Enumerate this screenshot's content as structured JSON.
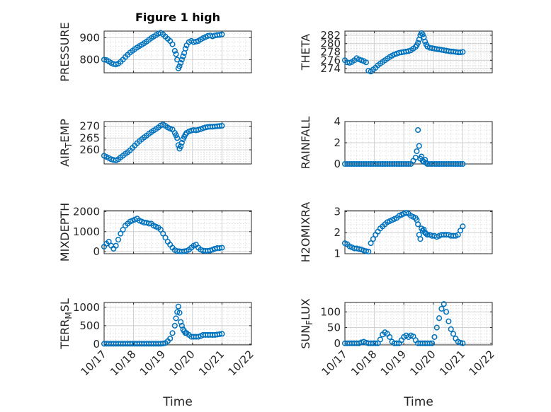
{
  "figure_title": "Figure 1 high",
  "colors": {
    "marker": "#0072bd",
    "axes": "#262626",
    "grid": "#d0d0d0",
    "background": "#ffffff"
  },
  "chart_data": [
    {
      "type": "scatter",
      "ylabel": "PRESSURE",
      "ylim": [
        740,
        930
      ],
      "yticks": [
        800,
        900
      ],
      "ytick_labels": [
        "800",
        "900"
      ],
      "xlim": [
        0,
        5
      ],
      "xtick_labels": [
        "10/17",
        "10/18",
        "10/19",
        "10/20",
        "10/21",
        "10/22"
      ],
      "xlabel": "",
      "title": "Figure 1 high",
      "x": [
        0,
        0.08,
        0.16,
        0.24,
        0.32,
        0.4,
        0.48,
        0.56,
        0.64,
        0.72,
        0.8,
        0.88,
        0.96,
        1.04,
        1.12,
        1.2,
        1.28,
        1.36,
        1.44,
        1.52,
        1.6,
        1.68,
        1.76,
        1.84,
        1.92,
        2.0,
        2.08,
        2.16,
        2.24,
        2.32,
        2.4,
        2.44,
        2.48,
        2.52,
        2.56,
        2.6,
        2.64,
        2.68,
        2.72,
        2.76,
        2.8,
        2.88,
        2.96,
        3.04,
        3.12,
        3.2,
        3.28,
        3.36,
        3.44,
        3.52,
        3.6,
        3.68,
        3.76,
        3.84,
        3.92,
        4.0
      ],
      "y": [
        800,
        798,
        792,
        785,
        780,
        778,
        782,
        790,
        800,
        812,
        822,
        832,
        840,
        848,
        855,
        862,
        868,
        875,
        882,
        890,
        898,
        905,
        912,
        918,
        922,
        915,
        905,
        895,
        885,
        870,
        840,
        825,
        800,
        760,
        770,
        785,
        800,
        815,
        830,
        850,
        865,
        880,
        885,
        880,
        882,
        885,
        892,
        898,
        903,
        908,
        910,
        906,
        910,
        912,
        913,
        915
      ]
    },
    {
      "type": "scatter",
      "ylabel": "THETA",
      "ylim": [
        273,
        283
      ],
      "yticks": [
        274,
        276,
        278,
        280,
        282
      ],
      "ytick_labels": [
        "274",
        "276",
        "278",
        "280",
        "282"
      ],
      "xlim": [
        0,
        5
      ],
      "xtick_labels": [
        "10/17",
        "10/18",
        "10/19",
        "10/20",
        "10/21",
        "10/22"
      ],
      "xlabel": "",
      "x": [
        0,
        0.08,
        0.16,
        0.24,
        0.32,
        0.4,
        0.48,
        0.56,
        0.64,
        0.72,
        0.8,
        0.88,
        0.96,
        1.04,
        1.12,
        1.2,
        1.28,
        1.36,
        1.44,
        1.52,
        1.6,
        1.68,
        1.76,
        1.84,
        1.92,
        2.0,
        2.08,
        2.16,
        2.24,
        2.32,
        2.4,
        2.44,
        2.48,
        2.52,
        2.56,
        2.6,
        2.64,
        2.68,
        2.72,
        2.76,
        2.8,
        2.88,
        2.96,
        3.04,
        3.12,
        3.2,
        3.28,
        3.36,
        3.44,
        3.52,
        3.6,
        3.68,
        3.76,
        3.84,
        3.92,
        4.0
      ],
      "y": [
        276,
        275.5,
        275.4,
        275.6,
        276,
        276.5,
        276.2,
        276,
        275.8,
        275.5,
        273.5,
        273.3,
        273.8,
        274.2,
        274.8,
        275.2,
        275.6,
        276,
        276.4,
        276.8,
        277.1,
        277.4,
        277.6,
        277.8,
        277.9,
        278,
        278.1,
        278.2,
        278.4,
        278.8,
        279.2,
        279.6,
        280.2,
        281,
        282,
        282.5,
        282.2,
        281.5,
        280.5,
        279.8,
        279.3,
        279,
        278.9,
        278.8,
        278.7,
        278.6,
        278.5,
        278.4,
        278.3,
        278.2,
        278.1,
        278.1,
        278,
        277.9,
        277.9,
        278
      ]
    },
    {
      "type": "scatter",
      "ylabel": "AIR_TEMP",
      "ylim": [
        254,
        272
      ],
      "yticks": [
        260,
        265,
        270
      ],
      "ytick_labels": [
        "260",
        "265",
        "270"
      ],
      "xlim": [
        0,
        5
      ],
      "xtick_labels": [
        "10/17",
        "10/18",
        "10/19",
        "10/20",
        "10/21",
        "10/22"
      ],
      "xlabel": "",
      "x": [
        0,
        0.08,
        0.16,
        0.24,
        0.32,
        0.4,
        0.48,
        0.56,
        0.64,
        0.72,
        0.8,
        0.88,
        0.96,
        1.04,
        1.12,
        1.2,
        1.28,
        1.36,
        1.44,
        1.52,
        1.6,
        1.68,
        1.76,
        1.84,
        1.92,
        2.0,
        2.08,
        2.16,
        2.24,
        2.32,
        2.4,
        2.44,
        2.48,
        2.52,
        2.56,
        2.6,
        2.64,
        2.68,
        2.72,
        2.76,
        2.8,
        2.88,
        2.96,
        3.04,
        3.12,
        3.2,
        3.28,
        3.36,
        3.44,
        3.52,
        3.6,
        3.68,
        3.76,
        3.84,
        3.92,
        4.0
      ],
      "y": [
        257.5,
        257,
        256.5,
        256,
        255.7,
        255.5,
        256,
        256.8,
        257.5,
        258.3,
        259,
        259.8,
        260.8,
        261.8,
        262.8,
        263.7,
        264.5,
        265.3,
        266,
        266.8,
        267.5,
        268.2,
        268.8,
        269.5,
        270.3,
        270.8,
        270.2,
        269.5,
        269,
        268.6,
        267.2,
        266.2,
        265,
        262,
        260.5,
        261.5,
        263,
        264.5,
        265.5,
        266.5,
        267.2,
        267.8,
        268.2,
        268.4,
        268.3,
        268.5,
        268.8,
        269.2,
        269.5,
        269.7,
        269.8,
        269.8,
        269.9,
        270,
        270.1,
        270.2
      ]
    },
    {
      "type": "scatter",
      "ylabel": "RAINFALL",
      "ylim": [
        0,
        4
      ],
      "yticks": [
        0,
        2,
        4
      ],
      "ytick_labels": [
        "0",
        "2",
        "4"
      ],
      "xlim": [
        0,
        5
      ],
      "xtick_labels": [
        "10/17",
        "10/18",
        "10/19",
        "10/20",
        "10/21",
        "10/22"
      ],
      "xlabel": "",
      "x": [
        0,
        0.08,
        0.16,
        0.24,
        0.32,
        0.4,
        0.48,
        0.56,
        0.64,
        0.72,
        0.8,
        0.88,
        0.96,
        1.04,
        1.12,
        1.2,
        1.28,
        1.36,
        1.44,
        1.52,
        1.6,
        1.68,
        1.76,
        1.84,
        1.92,
        2.0,
        2.08,
        2.16,
        2.24,
        2.32,
        2.4,
        2.44,
        2.48,
        2.52,
        2.56,
        2.6,
        2.64,
        2.68,
        2.72,
        2.76,
        2.8,
        2.88,
        2.96,
        3.04,
        3.12,
        3.2,
        3.28,
        3.36,
        3.44,
        3.52,
        3.6,
        3.68,
        3.76,
        3.84,
        3.92,
        4.0
      ],
      "y": [
        0,
        0,
        0,
        0,
        0,
        0,
        0,
        0,
        0,
        0,
        0,
        0,
        0,
        0,
        0,
        0,
        0,
        0,
        0,
        0,
        0,
        0,
        0,
        0,
        0,
        0,
        0,
        0,
        0,
        0.3,
        0.6,
        1.2,
        3.2,
        1.7,
        0.5,
        0.7,
        0.3,
        0.2,
        0.4,
        0.1,
        0,
        0,
        0,
        0,
        0,
        0,
        0,
        0,
        0,
        0,
        0,
        0,
        0,
        0,
        0,
        0
      ]
    },
    {
      "type": "scatter",
      "ylabel": "MIXDEPTH",
      "ylim": [
        -100,
        2050
      ],
      "yticks": [
        0,
        1000,
        2000
      ],
      "ytick_labels": [
        "0",
        "1000",
        "2000"
      ],
      "xlim": [
        0,
        5
      ],
      "xtick_labels": [
        "10/17",
        "10/18",
        "10/19",
        "10/20",
        "10/21",
        "10/22"
      ],
      "xlabel": "",
      "x": [
        0,
        0.08,
        0.16,
        0.24,
        0.32,
        0.4,
        0.48,
        0.56,
        0.64,
        0.72,
        0.8,
        0.88,
        0.96,
        1.04,
        1.12,
        1.2,
        1.28,
        1.36,
        1.44,
        1.52,
        1.6,
        1.68,
        1.76,
        1.84,
        1.92,
        2.0,
        2.08,
        2.16,
        2.24,
        2.32,
        2.4,
        2.48,
        2.56,
        2.64,
        2.72,
        2.8,
        2.88,
        2.96,
        3.04,
        3.12,
        3.2,
        3.28,
        3.36,
        3.44,
        3.52,
        3.6,
        3.68,
        3.76,
        3.84,
        3.92,
        4.0
      ],
      "y": [
        250,
        400,
        500,
        300,
        150,
        300,
        600,
        900,
        1100,
        1300,
        1400,
        1500,
        1550,
        1600,
        1650,
        1550,
        1500,
        1450,
        1450,
        1400,
        1400,
        1300,
        1250,
        1200,
        1100,
        900,
        700,
        500,
        350,
        200,
        80,
        30,
        20,
        10,
        20,
        40,
        100,
        200,
        300,
        350,
        200,
        100,
        50,
        40,
        40,
        60,
        100,
        150,
        180,
        180,
        200
      ]
    },
    {
      "type": "scatter",
      "ylabel": "H2OMIXRA",
      "ylim": [
        1,
        3.05
      ],
      "yticks": [
        1,
        2,
        3
      ],
      "ytick_labels": [
        "1",
        "2",
        "3"
      ],
      "xlim": [
        0,
        5
      ],
      "xtick_labels": [
        "10/17",
        "10/18",
        "10/19",
        "10/20",
        "10/21",
        "10/22"
      ],
      "xlabel": "",
      "x": [
        0,
        0.08,
        0.16,
        0.24,
        0.32,
        0.4,
        0.48,
        0.56,
        0.64,
        0.72,
        0.8,
        0.88,
        0.96,
        1.04,
        1.12,
        1.2,
        1.28,
        1.36,
        1.44,
        1.52,
        1.6,
        1.68,
        1.76,
        1.84,
        1.92,
        2.0,
        2.08,
        2.16,
        2.24,
        2.32,
        2.4,
        2.44,
        2.48,
        2.52,
        2.56,
        2.6,
        2.64,
        2.68,
        2.72,
        2.76,
        2.8,
        2.88,
        2.96,
        3.04,
        3.12,
        3.2,
        3.28,
        3.36,
        3.44,
        3.52,
        3.6,
        3.68,
        3.76,
        3.84,
        3.92,
        4.0
      ],
      "y": [
        1.5,
        1.45,
        1.35,
        1.3,
        1.25,
        1.25,
        1.22,
        1.2,
        1.15,
        1.12,
        1.1,
        1.5,
        1.7,
        1.9,
        2.05,
        2.2,
        2.3,
        2.4,
        2.5,
        2.55,
        2.6,
        2.65,
        2.7,
        2.8,
        2.85,
        2.9,
        2.95,
        2.9,
        2.8,
        2.75,
        2.7,
        2.6,
        2.4,
        1.9,
        1.7,
        2.2,
        2.1,
        2.15,
        2,
        1.95,
        1.9,
        1.9,
        1.85,
        1.85,
        1.8,
        1.85,
        1.9,
        1.9,
        1.9,
        1.9,
        1.85,
        1.85,
        1.85,
        1.9,
        2.1,
        2.3
      ]
    },
    {
      "type": "scatter",
      "ylabel": "TERR_MSL",
      "ylim": [
        -20,
        1130
      ],
      "yticks": [
        0,
        500,
        1000
      ],
      "ytick_labels": [
        "0",
        "500",
        "1000"
      ],
      "xlim": [
        0,
        5
      ],
      "xtick_labels": [
        "10/17",
        "10/18",
        "10/19",
        "10/20",
        "10/21",
        "10/22"
      ],
      "xlabel": "Time",
      "x": [
        0,
        0.08,
        0.16,
        0.24,
        0.32,
        0.4,
        0.48,
        0.56,
        0.64,
        0.72,
        0.8,
        0.88,
        0.96,
        1.04,
        1.12,
        1.2,
        1.28,
        1.36,
        1.44,
        1.52,
        1.6,
        1.68,
        1.76,
        1.84,
        1.92,
        2.0,
        2.08,
        2.16,
        2.24,
        2.32,
        2.4,
        2.44,
        2.48,
        2.52,
        2.56,
        2.6,
        2.64,
        2.68,
        2.72,
        2.76,
        2.8,
        2.88,
        2.96,
        3.04,
        3.12,
        3.2,
        3.28,
        3.36,
        3.44,
        3.52,
        3.6,
        3.68,
        3.76,
        3.84,
        3.92,
        4.0
      ],
      "y": [
        10,
        10,
        10,
        10,
        10,
        10,
        10,
        10,
        10,
        10,
        10,
        10,
        10,
        10,
        10,
        10,
        10,
        10,
        10,
        10,
        10,
        10,
        10,
        10,
        10,
        15,
        30,
        80,
        150,
        300,
        500,
        700,
        870,
        1020,
        850,
        600,
        500,
        400,
        350,
        300,
        300,
        250,
        200,
        200,
        200,
        200,
        220,
        250,
        250,
        250,
        250,
        250,
        250,
        260,
        270,
        280
      ]
    },
    {
      "type": "scatter",
      "ylabel": "SUN_FLUX",
      "ylim": [
        -5,
        130
      ],
      "yticks": [
        0,
        50,
        100
      ],
      "ytick_labels": [
        "0",
        "50",
        "100"
      ],
      "xlim": [
        0,
        5
      ],
      "xtick_labels": [
        "10/17",
        "10/18",
        "10/19",
        "10/20",
        "10/21",
        "10/22"
      ],
      "xlabel": "Time",
      "x": [
        0,
        0.08,
        0.16,
        0.24,
        0.32,
        0.4,
        0.48,
        0.56,
        0.64,
        0.72,
        0.8,
        0.88,
        0.96,
        1.04,
        1.12,
        1.2,
        1.28,
        1.36,
        1.44,
        1.52,
        1.6,
        1.68,
        1.76,
        1.84,
        1.92,
        2.0,
        2.08,
        2.16,
        2.24,
        2.32,
        2.4,
        2.48,
        2.56,
        2.64,
        2.72,
        2.8,
        2.88,
        2.96,
        3.04,
        3.12,
        3.2,
        3.28,
        3.36,
        3.44,
        3.52,
        3.6,
        3.68,
        3.76,
        3.84,
        3.92,
        4.0
      ],
      "y": [
        0,
        0,
        0,
        0,
        0,
        0,
        0,
        3,
        5,
        2,
        0,
        0,
        0,
        0,
        0,
        12,
        28,
        35,
        30,
        20,
        5,
        0,
        0,
        0,
        10,
        20,
        25,
        20,
        25,
        22,
        10,
        0,
        0,
        0,
        0,
        0,
        0,
        0,
        20,
        50,
        80,
        110,
        125,
        100,
        70,
        45,
        30,
        15,
        5,
        2,
        0
      ]
    }
  ]
}
